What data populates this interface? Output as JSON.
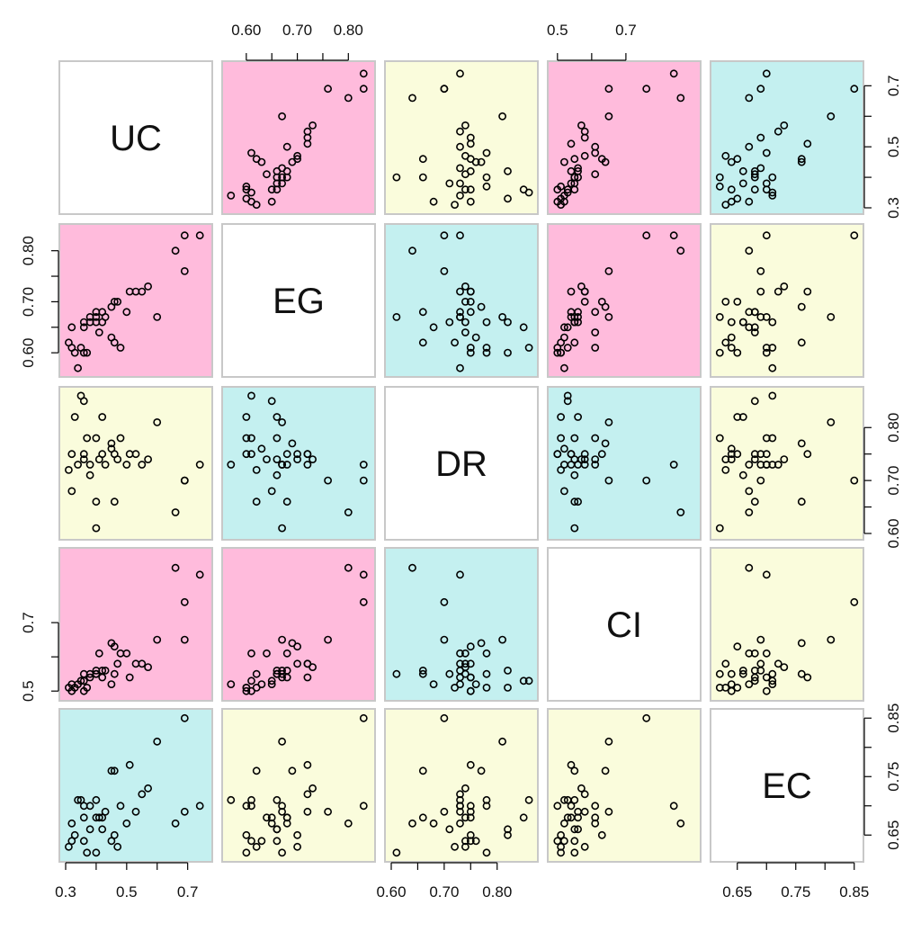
{
  "chart_data": {
    "type": "scatter",
    "title": "",
    "variables": [
      {
        "name": "UC",
        "lim": [
          0.3,
          0.76
        ],
        "ticks": [
          0.3,
          0.5,
          0.7
        ],
        "tick_labels": [
          "0.3",
          "0.5",
          "0.7"
        ]
      },
      {
        "name": "EG",
        "lim": [
          0.565,
          0.84
        ],
        "ticks": [
          0.6,
          0.7,
          0.8
        ],
        "tick_labels": [
          "0.60",
          "0.70",
          "0.80"
        ]
      },
      {
        "name": "DR",
        "lim": [
          0.6,
          0.865
        ],
        "ticks": [
          0.6,
          0.7,
          0.8
        ],
        "tick_labels": [
          "0.60",
          "0.70",
          "0.80"
        ]
      },
      {
        "name": "CI",
        "lim": [
          0.49,
          0.9
        ],
        "ticks": [
          0.5,
          0.7
        ],
        "tick_labels": [
          "0.5",
          "0.7"
        ]
      },
      {
        "name": "EC",
        "lim": [
          0.615,
          0.855
        ],
        "ticks": [
          0.65,
          0.75,
          0.85
        ],
        "tick_labels": [
          "0.65",
          "0.75",
          "0.85"
        ]
      }
    ],
    "axes": {
      "top_labeled_columns": [
        1,
        3
      ],
      "bottom_labeled_columns": [
        0,
        2,
        4
      ],
      "left_labeled_rows": [
        1,
        3
      ],
      "right_labeled_rows": [
        0,
        2,
        4
      ]
    },
    "colors": {
      "pink": "#FFBBDC",
      "yellow": "#FAFCDC",
      "cyan": "#C4F0F0",
      "diagonal": "#ffffff",
      "border": "#c8c8c8",
      "point": "#000000"
    },
    "panel_colors": [
      [
        "diagonal",
        "pink",
        "yellow",
        "pink",
        "cyan"
      ],
      [
        "pink",
        "diagonal",
        "cyan",
        "pink",
        "yellow"
      ],
      [
        "yellow",
        "cyan",
        "diagonal",
        "cyan",
        "yellow"
      ],
      [
        "pink",
        "pink",
        "cyan",
        "diagonal",
        "yellow"
      ],
      [
        "cyan",
        "yellow",
        "yellow",
        "yellow",
        "diagonal"
      ]
    ],
    "observations": [
      {
        "UC": 0.31,
        "EG": 0.62,
        "DR": 0.72,
        "CI": 0.51,
        "EC": 0.63
      },
      {
        "UC": 0.32,
        "EG": 0.65,
        "DR": 0.68,
        "CI": 0.52,
        "EC": 0.67
      },
      {
        "UC": 0.32,
        "EG": 0.61,
        "DR": 0.75,
        "CI": 0.5,
        "EC": 0.64
      },
      {
        "UC": 0.33,
        "EG": 0.6,
        "DR": 0.82,
        "CI": 0.51,
        "EC": 0.65
      },
      {
        "UC": 0.34,
        "EG": 0.57,
        "DR": 0.73,
        "CI": 0.52,
        "EC": 0.71
      },
      {
        "UC": 0.35,
        "EG": 0.61,
        "DR": 0.86,
        "CI": 0.53,
        "EC": 0.71
      },
      {
        "UC": 0.36,
        "EG": 0.65,
        "DR": 0.85,
        "CI": 0.53,
        "EC": 0.68
      },
      {
        "UC": 0.36,
        "EG": 0.66,
        "DR": 0.74,
        "CI": 0.55,
        "EC": 0.64
      },
      {
        "UC": 0.36,
        "EG": 0.6,
        "DR": 0.75,
        "CI": 0.5,
        "EC": 0.7
      },
      {
        "UC": 0.37,
        "EG": 0.6,
        "DR": 0.78,
        "CI": 0.51,
        "EC": 0.62
      },
      {
        "UC": 0.38,
        "EG": 0.66,
        "DR": 0.71,
        "CI": 0.55,
        "EC": 0.66
      },
      {
        "UC": 0.38,
        "EG": 0.67,
        "DR": 0.73,
        "CI": 0.54,
        "EC": 0.7
      },
      {
        "UC": 0.4,
        "EG": 0.68,
        "DR": 0.66,
        "CI": 0.56,
        "EC": 0.68
      },
      {
        "UC": 0.4,
        "EG": 0.67,
        "DR": 0.61,
        "CI": 0.55,
        "EC": 0.62
      },
      {
        "UC": 0.4,
        "EG": 0.66,
        "DR": 0.78,
        "CI": 0.55,
        "EC": 0.71
      },
      {
        "UC": 0.41,
        "EG": 0.64,
        "DR": 0.74,
        "CI": 0.61,
        "EC": 0.68
      },
      {
        "UC": 0.42,
        "EG": 0.66,
        "DR": 0.82,
        "CI": 0.56,
        "EC": 0.66
      },
      {
        "UC": 0.42,
        "EG": 0.68,
        "DR": 0.75,
        "CI": 0.54,
        "EC": 0.68
      },
      {
        "UC": 0.43,
        "EG": 0.67,
        "DR": 0.73,
        "CI": 0.56,
        "EC": 0.69
      },
      {
        "UC": 0.45,
        "EG": 0.63,
        "DR": 0.76,
        "CI": 0.52,
        "EC": 0.64
      },
      {
        "UC": 0.45,
        "EG": 0.69,
        "DR": 0.77,
        "CI": 0.64,
        "EC": 0.76
      },
      {
        "UC": 0.46,
        "EG": 0.62,
        "DR": 0.66,
        "CI": 0.55,
        "EC": 0.76
      },
      {
        "UC": 0.46,
        "EG": 0.7,
        "DR": 0.75,
        "CI": 0.63,
        "EC": 0.65
      },
      {
        "UC": 0.47,
        "EG": 0.7,
        "DR": 0.74,
        "CI": 0.58,
        "EC": 0.63
      },
      {
        "UC": 0.48,
        "EG": 0.61,
        "DR": 0.78,
        "CI": 0.61,
        "EC": 0.7
      },
      {
        "UC": 0.5,
        "EG": 0.68,
        "DR": 0.73,
        "CI": 0.61,
        "EC": 0.67
      },
      {
        "UC": 0.51,
        "EG": 0.72,
        "DR": 0.75,
        "CI": 0.54,
        "EC": 0.77
      },
      {
        "UC": 0.53,
        "EG": 0.72,
        "DR": 0.75,
        "CI": 0.58,
        "EC": 0.69
      },
      {
        "UC": 0.55,
        "EG": 0.72,
        "DR": 0.73,
        "CI": 0.58,
        "EC": 0.72
      },
      {
        "UC": 0.57,
        "EG": 0.73,
        "DR": 0.74,
        "CI": 0.57,
        "EC": 0.73
      },
      {
        "UC": 0.6,
        "EG": 0.67,
        "DR": 0.81,
        "CI": 0.65,
        "EC": 0.81
      },
      {
        "UC": 0.66,
        "EG": 0.8,
        "DR": 0.64,
        "CI": 0.86,
        "EC": 0.67
      },
      {
        "UC": 0.69,
        "EG": 0.76,
        "DR": 0.7,
        "CI": 0.65,
        "EC": 0.69
      },
      {
        "UC": 0.69,
        "EG": 0.83,
        "DR": 0.7,
        "CI": 0.76,
        "EC": 0.85
      },
      {
        "UC": 0.74,
        "EG": 0.83,
        "DR": 0.73,
        "CI": 0.84,
        "EC": 0.7
      }
    ]
  }
}
